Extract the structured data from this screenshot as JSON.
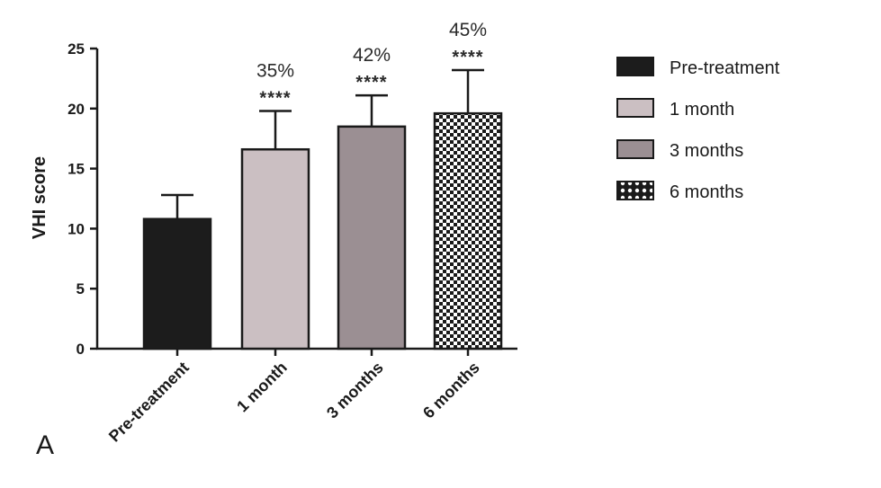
{
  "chart_data": {
    "type": "bar",
    "panel_label": "A",
    "ylabel": "VHI score",
    "ylim": [
      0,
      25
    ],
    "yticks": [
      0,
      5,
      10,
      15,
      20,
      25
    ],
    "categories": [
      "Pre-treatment",
      "1 month",
      "3 months",
      "6 months"
    ],
    "values": [
      10.8,
      16.6,
      18.5,
      19.6
    ],
    "errors": [
      2.0,
      3.2,
      2.6,
      3.6
    ],
    "annotations": {
      "percent": [
        "",
        "35%",
        "42%",
        "45%"
      ],
      "significance": [
        "",
        "****",
        "****",
        "****"
      ]
    },
    "colors": [
      "#1c1c1c",
      "#cbbfc2",
      "#9b8f93",
      "checkerboard"
    ],
    "legend": {
      "placement": "right",
      "entries": [
        "Pre-treatment",
        "1 month",
        "3 months",
        "6 months"
      ]
    }
  }
}
